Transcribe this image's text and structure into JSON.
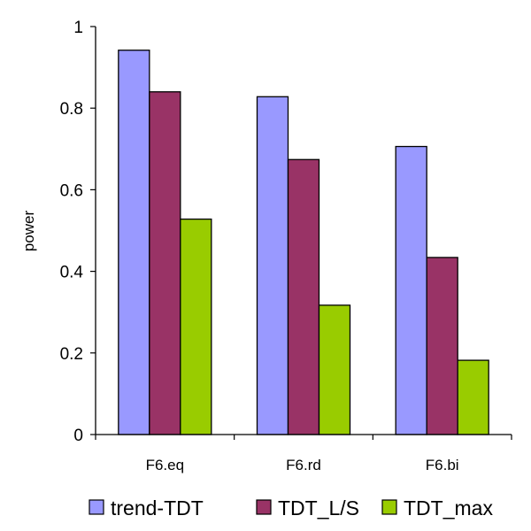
{
  "chart_data": {
    "type": "bar",
    "title": "",
    "xlabel": "",
    "ylabel": "power",
    "ylim": [
      0,
      1
    ],
    "yticks": [
      "0",
      "0.2",
      "0.4",
      "0.6",
      "0.8",
      "1"
    ],
    "categories": [
      "F6.eq",
      "F6.rd",
      "F6.bi"
    ],
    "series": [
      {
        "name": "trend-TDT",
        "color": "#9999ff",
        "values": [
          0.942,
          0.828,
          0.706
        ]
      },
      {
        "name": "TDT_L/S",
        "color": "#993366",
        "values": [
          0.84,
          0.674,
          0.434
        ]
      },
      {
        "name": "TDT_max",
        "color": "#99cc00",
        "values": [
          0.528,
          0.317,
          0.182
        ]
      }
    ],
    "grid": false,
    "legend_position": "bottom"
  }
}
